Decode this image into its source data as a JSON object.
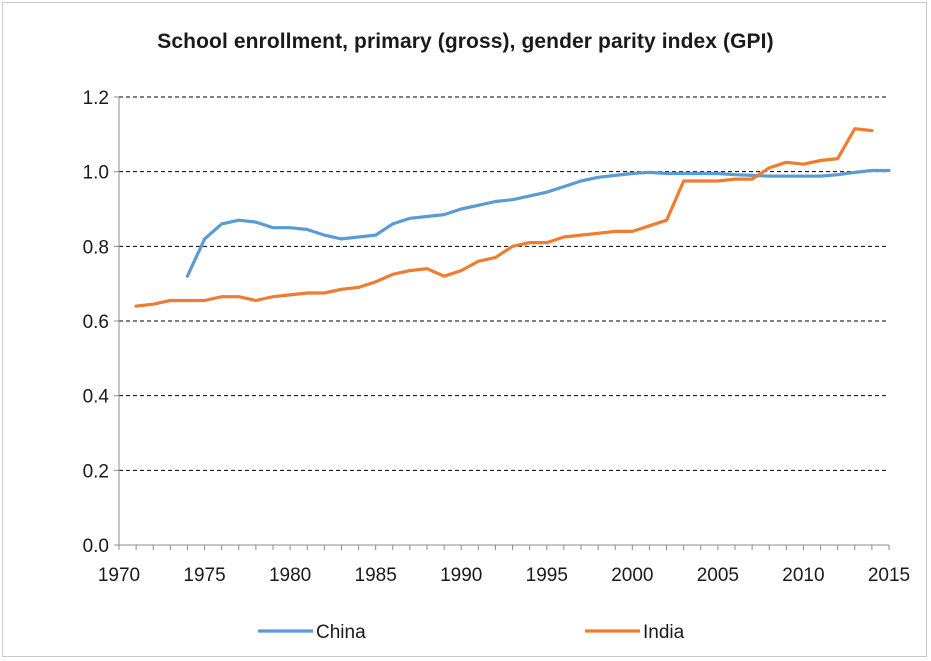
{
  "chart_data": {
    "type": "line",
    "title": "School enrollment, primary (gross), gender parity index (GPI)",
    "xlabel": "",
    "ylabel": "",
    "xlim": [
      1970,
      2015
    ],
    "ylim": [
      0,
      1.2
    ],
    "x_ticks": [
      "1970",
      "1975",
      "1980",
      "1985",
      "1990",
      "1995",
      "2000",
      "2005",
      "2010",
      "2015"
    ],
    "y_ticks": [
      "0.0",
      "0.2",
      "0.4",
      "0.6",
      "0.8",
      "1.0",
      "1.2"
    ],
    "grid": "horizontal dashed",
    "legend_position": "bottom",
    "series": [
      {
        "name": "China",
        "color": "#5b9bd5",
        "x": [
          1974,
          1975,
          1976,
          1977,
          1978,
          1979,
          1980,
          1981,
          1982,
          1983,
          1984,
          1985,
          1986,
          1987,
          1988,
          1989,
          1990,
          1991,
          1992,
          1993,
          1994,
          1995,
          1996,
          1997,
          1998,
          1999,
          2000,
          2001,
          2002,
          2003,
          2004,
          2005,
          2006,
          2007,
          2008,
          2009,
          2010,
          2011,
          2012,
          2013,
          2014,
          2015
        ],
        "values": [
          0.72,
          0.82,
          0.86,
          0.87,
          0.865,
          0.85,
          0.85,
          0.845,
          0.83,
          0.82,
          0.825,
          0.83,
          0.86,
          0.875,
          0.88,
          0.885,
          0.9,
          0.91,
          0.92,
          0.925,
          0.935,
          0.945,
          0.96,
          0.975,
          0.985,
          0.99,
          0.995,
          0.998,
          0.995,
          0.995,
          0.995,
          0.995,
          0.992,
          0.99,
          0.988,
          0.988,
          0.988,
          0.988,
          0.992,
          0.998,
          1.003,
          1.003
        ]
      },
      {
        "name": "India",
        "color": "#ed7d31",
        "x": [
          1971,
          1972,
          1973,
          1974,
          1975,
          1976,
          1977,
          1978,
          1979,
          1980,
          1981,
          1982,
          1983,
          1984,
          1985,
          1986,
          1987,
          1988,
          1989,
          1990,
          1991,
          1992,
          1993,
          1994,
          1995,
          1996,
          1997,
          1998,
          1999,
          2000,
          2001,
          2002,
          2003,
          2004,
          2005,
          2006,
          2007,
          2008,
          2009,
          2010,
          2011,
          2012,
          2013,
          2014
        ],
        "values": [
          0.64,
          0.645,
          0.655,
          0.655,
          0.655,
          0.665,
          0.665,
          0.655,
          0.665,
          0.67,
          0.675,
          0.675,
          0.685,
          0.69,
          0.705,
          0.725,
          0.735,
          0.74,
          0.72,
          0.735,
          0.76,
          0.77,
          0.8,
          0.81,
          0.81,
          0.825,
          0.83,
          0.835,
          0.84,
          0.84,
          0.855,
          0.87,
          0.975,
          0.975,
          0.975,
          0.98,
          0.98,
          1.01,
          1.025,
          1.02,
          1.03,
          1.035,
          1.115,
          1.11
        ]
      }
    ]
  }
}
